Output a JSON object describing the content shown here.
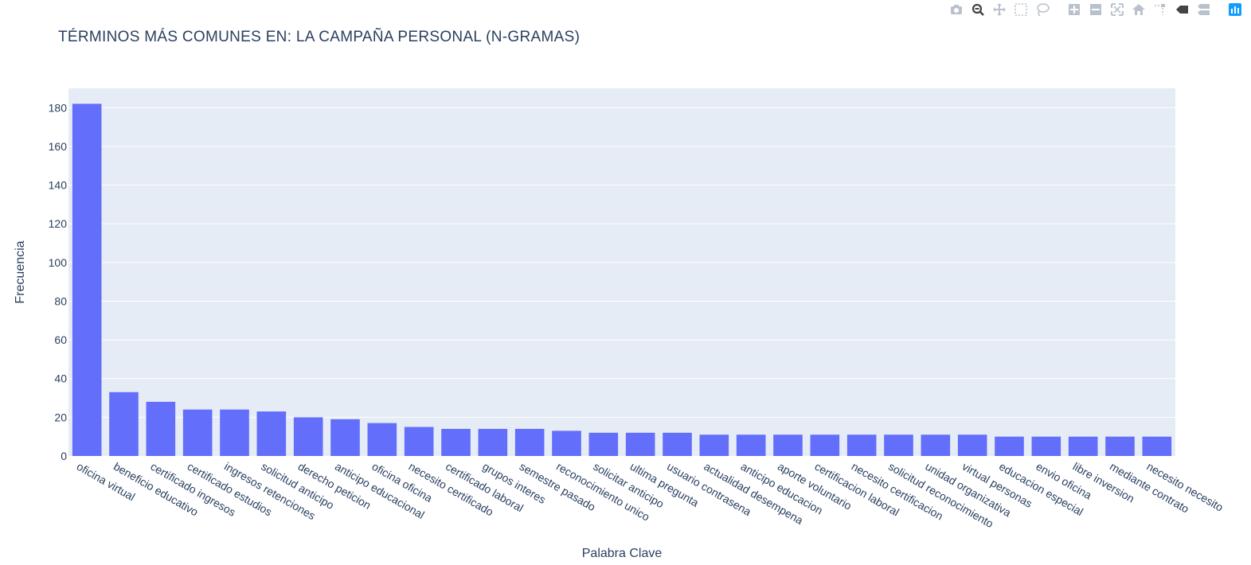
{
  "modebar": {
    "buttons": [
      {
        "name": "camera-icon",
        "group": 0
      },
      {
        "name": "zoom-icon",
        "group": 0
      },
      {
        "name": "pan-icon",
        "group": 0
      },
      {
        "name": "box-select-icon",
        "group": 0
      },
      {
        "name": "lasso-select-icon",
        "group": 0
      },
      {
        "name": "zoom-in-icon",
        "group": 1
      },
      {
        "name": "zoom-out-icon",
        "group": 1
      },
      {
        "name": "autoscale-icon",
        "group": 1
      },
      {
        "name": "reset-axes-icon",
        "group": 1
      },
      {
        "name": "spike-lines-icon",
        "group": 1
      },
      {
        "name": "hover-closest-icon",
        "group": 1
      },
      {
        "name": "hover-compare-icon",
        "group": 1
      },
      {
        "name": "plotly-logo-icon",
        "group": 2
      }
    ],
    "icon_color": "#b9c2cc",
    "active_color": "#444444",
    "logo_color": "#119dff"
  },
  "chart_data": {
    "type": "bar",
    "title": "TÉRMINOS MÁS COMUNES EN: LA CAMPAÑA PERSONAL (N-GRAMAS)",
    "xlabel": "Palabra Clave",
    "ylabel": "Frecuencia",
    "ylim": [
      0,
      190
    ],
    "yticks": [
      0,
      20,
      40,
      60,
      80,
      100,
      120,
      140,
      160,
      180
    ],
    "grid": true,
    "bar_color": "#636efa",
    "plot_bg": "#e5ecf6",
    "categories": [
      "oficina virtual",
      "beneficio educativo",
      "certificado ingresos",
      "certificado estudios",
      "ingresos retenciones",
      "solicitud anticipo",
      "derecho peticion",
      "anticipo educacional",
      "oficina oficina",
      "necesito certificado",
      "certificado laboral",
      "grupos interes",
      "semestre pasado",
      "reconocimiento unico",
      "solicitar anticipo",
      "ultima pregunta",
      "usuario contrasena",
      "actualidad desempena",
      "anticipo educacion",
      "aporte voluntario",
      "certificacion laboral",
      "necesito certificacion",
      "solicitud reconocimiento",
      "unidad organizativa",
      "virtual personas",
      "educacion especial",
      "envio oficina",
      "libre inversion",
      "mediante contrato",
      "necesito necesito"
    ],
    "values": [
      182,
      33,
      28,
      24,
      24,
      23,
      20,
      19,
      17,
      15,
      14,
      14,
      14,
      13,
      12,
      12,
      12,
      11,
      11,
      11,
      11,
      11,
      11,
      11,
      11,
      10,
      10,
      10,
      10,
      10
    ]
  }
}
